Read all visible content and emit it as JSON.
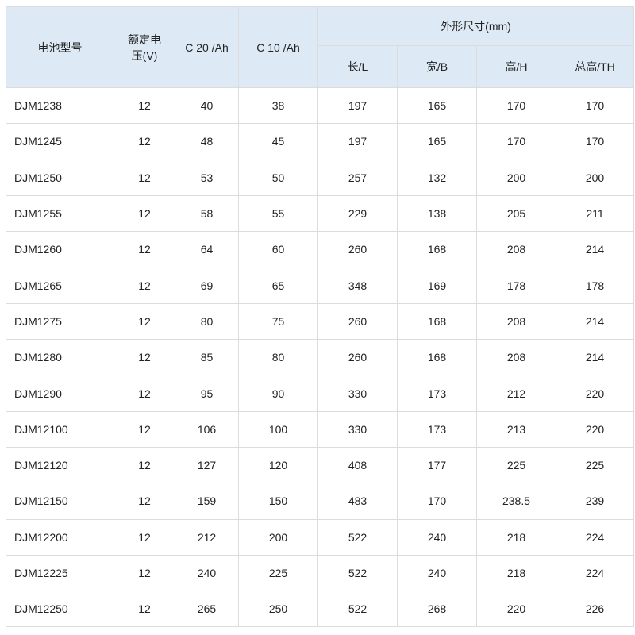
{
  "headers": {
    "model": "电池型号",
    "voltage": "额定电压(V)",
    "c20": "C 20 /Ah",
    "c10": "C 10 /Ah",
    "dimensions": "外形尺寸(mm)",
    "length": "长/L",
    "width": "宽/B",
    "height": "高/H",
    "total_height": "总高/TH"
  },
  "rows": [
    [
      "DJM1238",
      "12",
      "40",
      "38",
      "197",
      "165",
      "170",
      "170"
    ],
    [
      "DJM1245",
      "12",
      "48",
      "45",
      "197",
      "165",
      "170",
      "170"
    ],
    [
      "DJM1250",
      "12",
      "53",
      "50",
      "257",
      "132",
      "200",
      "200"
    ],
    [
      "DJM1255",
      "12",
      "58",
      "55",
      "229",
      "138",
      "205",
      "211"
    ],
    [
      "DJM1260",
      "12",
      "64",
      "60",
      "260",
      "168",
      "208",
      "214"
    ],
    [
      "DJM1265",
      "12",
      "69",
      "65",
      "348",
      "169",
      "178",
      "178"
    ],
    [
      "DJM1275",
      "12",
      "80",
      "75",
      "260",
      "168",
      "208",
      "214"
    ],
    [
      "DJM1280",
      "12",
      "85",
      "80",
      "260",
      "168",
      "208",
      "214"
    ],
    [
      "DJM1290",
      "12",
      "95",
      "90",
      "330",
      "173",
      "212",
      "220"
    ],
    [
      "DJM12100",
      "12",
      "106",
      "100",
      "330",
      "173",
      "213",
      "220"
    ],
    [
      "DJM12120",
      "12",
      "127",
      "120",
      "408",
      "177",
      "225",
      "225"
    ],
    [
      "DJM12150",
      "12",
      "159",
      "150",
      "483",
      "170",
      "238.5",
      "239"
    ],
    [
      "DJM12200",
      "12",
      "212",
      "200",
      "522",
      "240",
      "218",
      "224"
    ],
    [
      "DJM12225",
      "12",
      "240",
      "225",
      "522",
      "240",
      "218",
      "224"
    ],
    [
      "DJM12250",
      "12",
      "265",
      "250",
      "522",
      "268",
      "220",
      "226"
    ]
  ],
  "colors": {
    "header_bg": "#dde9f5",
    "border": "#dcdcdc"
  }
}
